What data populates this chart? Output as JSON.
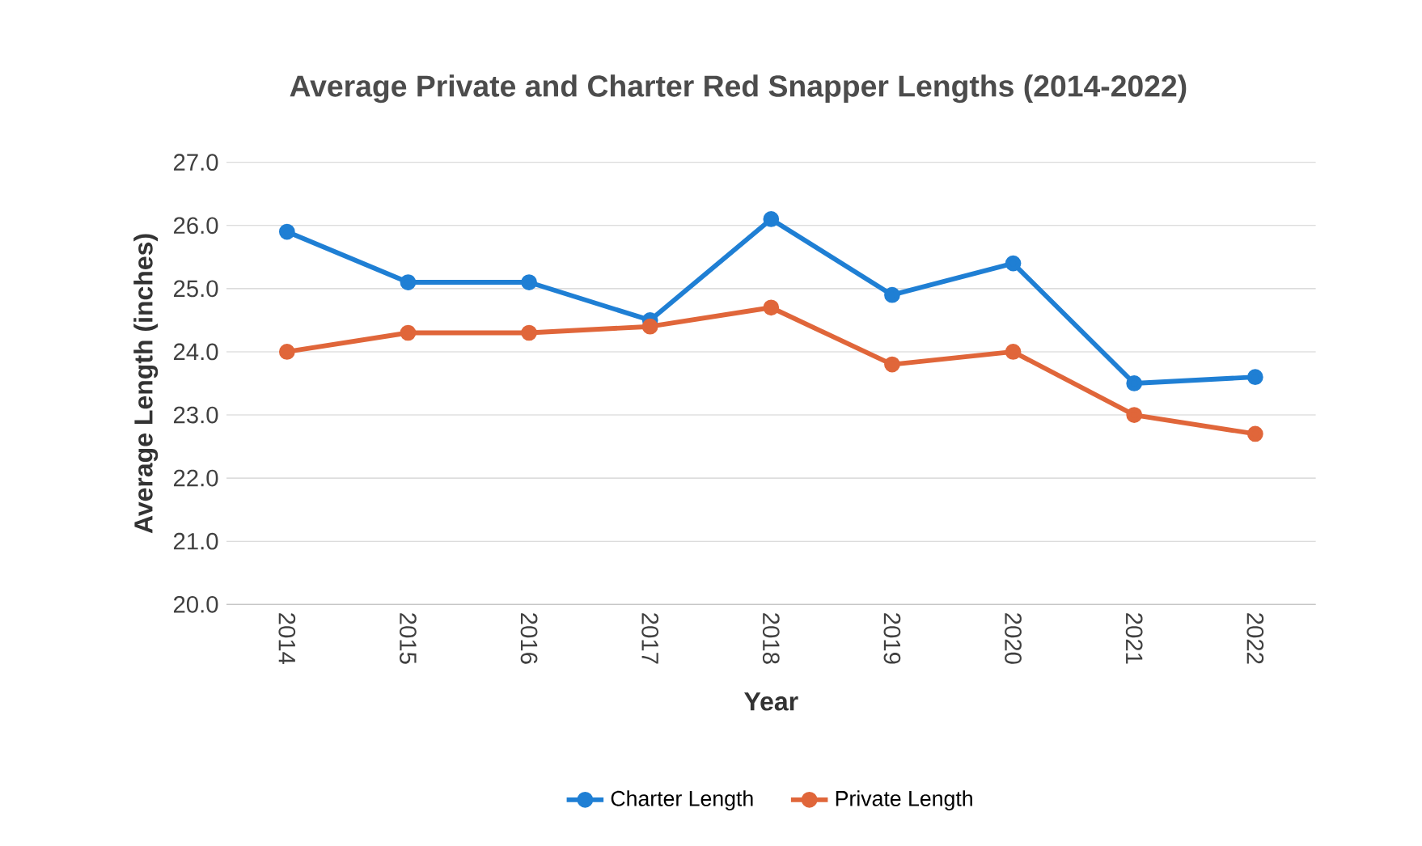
{
  "chart_data": {
    "type": "line",
    "title": "Average Private and Charter Red Snapper Lengths (2014-2022)",
    "xlabel": "Year",
    "ylabel": "Average Length (inches)",
    "categories": [
      "2014",
      "2015",
      "2016",
      "2017",
      "2018",
      "2019",
      "2020",
      "2021",
      "2022"
    ],
    "series": [
      {
        "name": "Charter Length",
        "color": "#1f7fd4",
        "values": [
          25.9,
          25.1,
          25.1,
          24.5,
          26.1,
          24.9,
          25.4,
          23.5,
          23.6
        ]
      },
      {
        "name": "Private Length",
        "color": "#e0663a",
        "values": [
          24.0,
          24.3,
          24.3,
          24.4,
          24.7,
          23.8,
          24.0,
          23.0,
          22.7
        ]
      }
    ],
    "ylim": [
      20,
      27
    ],
    "yticks": [
      {
        "value": 20,
        "label": "20.0"
      },
      {
        "value": 21,
        "label": "21.0"
      },
      {
        "value": 22,
        "label": "22.0"
      },
      {
        "value": 23,
        "label": "23.0"
      },
      {
        "value": 24,
        "label": "24.0"
      },
      {
        "value": 25,
        "label": "25.0"
      },
      {
        "value": 26,
        "label": "26.0"
      },
      {
        "value": 27,
        "label": "27.0"
      }
    ],
    "grid": "y",
    "legend": "bottom",
    "marker": "circle",
    "line_style": "solid"
  }
}
